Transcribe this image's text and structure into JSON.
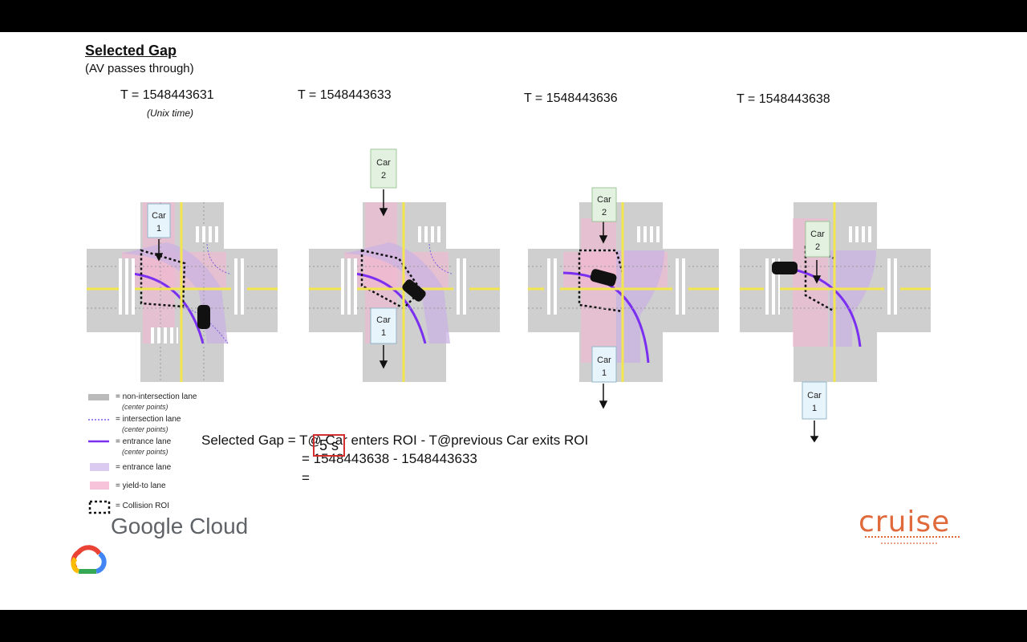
{
  "slide": {
    "title": "Selected Gap",
    "subtitle": "(AV passes through)"
  },
  "panels": [
    {
      "time_label": "T = 1548443631",
      "note": "(Unix time)",
      "cars": [
        {
          "label": "Car\n1",
          "color": "#e8f4fb"
        }
      ]
    },
    {
      "time_label": "T = 1548443633",
      "cars": [
        {
          "label": "Car\n2",
          "color": "#e3f2e0"
        },
        {
          "label": "Car\n1",
          "color": "#e8f4fb"
        }
      ]
    },
    {
      "time_label": "T = 1548443636",
      "cars": [
        {
          "label": "Car\n2",
          "color": "#e3f2e0"
        },
        {
          "label": "Car\n1",
          "color": "#e8f4fb"
        }
      ]
    },
    {
      "time_label": "T = 1548443638",
      "cars": [
        {
          "label": "Car\n2",
          "color": "#e3f2e0"
        },
        {
          "label": "Car\n1",
          "color": "#e8f4fb"
        }
      ]
    }
  ],
  "car_labels": {
    "car": "Car",
    "one": "1",
    "two": "2"
  },
  "legend": [
    {
      "icon": "non-intersection-lane-swatch",
      "text": "= non-intersection lane",
      "sub": "(center points)"
    },
    {
      "icon": "intersection-lane-swatch",
      "text": "= intersection lane",
      "sub": "(center points)"
    },
    {
      "icon": "entrance-lane-line-swatch",
      "text": "= entrance lane",
      "sub": "(center points)"
    },
    {
      "icon": "entrance-lane-area-swatch",
      "text": "= entrance lane",
      "sub": ""
    },
    {
      "icon": "yield-to-lane-swatch",
      "text": "= yield-to lane",
      "sub": ""
    },
    {
      "icon": "collision-roi-swatch",
      "text": "= Collision ROI",
      "sub": ""
    }
  ],
  "formula": {
    "line1": "Selected Gap =  T@ Car  enters ROI - T@previous  Car  exits ROI",
    "line2": "=  1548443638 - 1548443633",
    "line3_prefix": "=",
    "result": "5 s"
  },
  "colors": {
    "road": "#cfcfcf",
    "yield": "#f3b6d0",
    "entrance_area": "#c9b3e3",
    "entrance_line": "#7b2ff0",
    "roi": "#111111",
    "highlight_box": "#d32f2f",
    "cruise": "#e06a3c"
  },
  "branding": {
    "google_cloud": "Google Cloud",
    "cruise": "cruise"
  }
}
